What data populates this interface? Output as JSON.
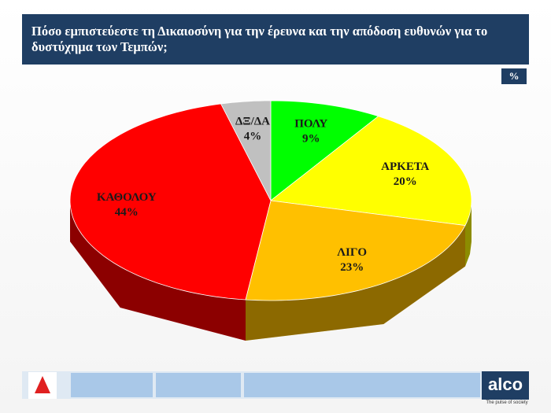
{
  "chart_data": {
    "type": "pie",
    "title": "Πόσο εμπιστεύεστε τη Δικαιοσύνη για την έρευνα και την απόδοση ευθυνών για το δυστύχημα των Τεμπών;",
    "unit": "%",
    "categories": [
      "ΠΟΛΥ",
      "ΑΡΚΕΤΑ",
      "ΛΙΓΟ",
      "ΚΑΘΟΛΟΥ",
      "ΔΞ/ΔΑ"
    ],
    "values": [
      9,
      20,
      23,
      44,
      4
    ],
    "value_labels": [
      "9%",
      "20%",
      "23%",
      "44%",
      "4%"
    ],
    "colors": [
      "#00ff00",
      "#ffff00",
      "#ffc000",
      "#ff0000",
      "#c0c0c0"
    ]
  },
  "brand": {
    "name": "alco",
    "tagline": "The pulse of society"
  }
}
